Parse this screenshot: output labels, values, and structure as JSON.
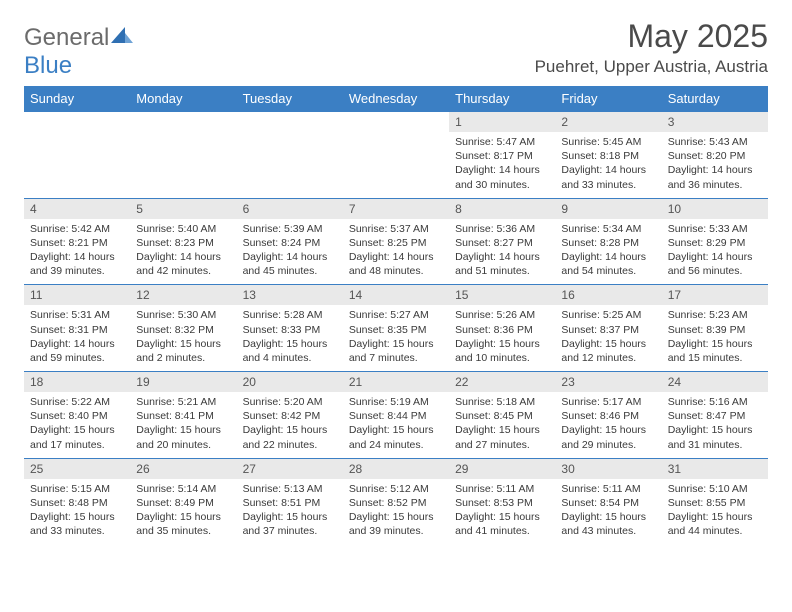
{
  "brand": {
    "text_gray": "General",
    "text_blue": "Blue"
  },
  "title": "May 2025",
  "location": "Puehret, Upper Austria, Austria",
  "colors": {
    "header_bg": "#3b7fc4",
    "header_text": "#ffffff",
    "daynum_bg": "#e9e9e9",
    "text": "#3a3a3a",
    "title_text": "#4a4a4a"
  },
  "weekdays": [
    "Sunday",
    "Monday",
    "Tuesday",
    "Wednesday",
    "Thursday",
    "Friday",
    "Saturday"
  ],
  "weeks": [
    [
      null,
      null,
      null,
      null,
      {
        "n": "1",
        "sr": "Sunrise: 5:47 AM",
        "ss": "Sunset: 8:17 PM",
        "dl1": "Daylight: 14 hours",
        "dl2": "and 30 minutes."
      },
      {
        "n": "2",
        "sr": "Sunrise: 5:45 AM",
        "ss": "Sunset: 8:18 PM",
        "dl1": "Daylight: 14 hours",
        "dl2": "and 33 minutes."
      },
      {
        "n": "3",
        "sr": "Sunrise: 5:43 AM",
        "ss": "Sunset: 8:20 PM",
        "dl1": "Daylight: 14 hours",
        "dl2": "and 36 minutes."
      }
    ],
    [
      {
        "n": "4",
        "sr": "Sunrise: 5:42 AM",
        "ss": "Sunset: 8:21 PM",
        "dl1": "Daylight: 14 hours",
        "dl2": "and 39 minutes."
      },
      {
        "n": "5",
        "sr": "Sunrise: 5:40 AM",
        "ss": "Sunset: 8:23 PM",
        "dl1": "Daylight: 14 hours",
        "dl2": "and 42 minutes."
      },
      {
        "n": "6",
        "sr": "Sunrise: 5:39 AM",
        "ss": "Sunset: 8:24 PM",
        "dl1": "Daylight: 14 hours",
        "dl2": "and 45 minutes."
      },
      {
        "n": "7",
        "sr": "Sunrise: 5:37 AM",
        "ss": "Sunset: 8:25 PM",
        "dl1": "Daylight: 14 hours",
        "dl2": "and 48 minutes."
      },
      {
        "n": "8",
        "sr": "Sunrise: 5:36 AM",
        "ss": "Sunset: 8:27 PM",
        "dl1": "Daylight: 14 hours",
        "dl2": "and 51 minutes."
      },
      {
        "n": "9",
        "sr": "Sunrise: 5:34 AM",
        "ss": "Sunset: 8:28 PM",
        "dl1": "Daylight: 14 hours",
        "dl2": "and 54 minutes."
      },
      {
        "n": "10",
        "sr": "Sunrise: 5:33 AM",
        "ss": "Sunset: 8:29 PM",
        "dl1": "Daylight: 14 hours",
        "dl2": "and 56 minutes."
      }
    ],
    [
      {
        "n": "11",
        "sr": "Sunrise: 5:31 AM",
        "ss": "Sunset: 8:31 PM",
        "dl1": "Daylight: 14 hours",
        "dl2": "and 59 minutes."
      },
      {
        "n": "12",
        "sr": "Sunrise: 5:30 AM",
        "ss": "Sunset: 8:32 PM",
        "dl1": "Daylight: 15 hours",
        "dl2": "and 2 minutes."
      },
      {
        "n": "13",
        "sr": "Sunrise: 5:28 AM",
        "ss": "Sunset: 8:33 PM",
        "dl1": "Daylight: 15 hours",
        "dl2": "and 4 minutes."
      },
      {
        "n": "14",
        "sr": "Sunrise: 5:27 AM",
        "ss": "Sunset: 8:35 PM",
        "dl1": "Daylight: 15 hours",
        "dl2": "and 7 minutes."
      },
      {
        "n": "15",
        "sr": "Sunrise: 5:26 AM",
        "ss": "Sunset: 8:36 PM",
        "dl1": "Daylight: 15 hours",
        "dl2": "and 10 minutes."
      },
      {
        "n": "16",
        "sr": "Sunrise: 5:25 AM",
        "ss": "Sunset: 8:37 PM",
        "dl1": "Daylight: 15 hours",
        "dl2": "and 12 minutes."
      },
      {
        "n": "17",
        "sr": "Sunrise: 5:23 AM",
        "ss": "Sunset: 8:39 PM",
        "dl1": "Daylight: 15 hours",
        "dl2": "and 15 minutes."
      }
    ],
    [
      {
        "n": "18",
        "sr": "Sunrise: 5:22 AM",
        "ss": "Sunset: 8:40 PM",
        "dl1": "Daylight: 15 hours",
        "dl2": "and 17 minutes."
      },
      {
        "n": "19",
        "sr": "Sunrise: 5:21 AM",
        "ss": "Sunset: 8:41 PM",
        "dl1": "Daylight: 15 hours",
        "dl2": "and 20 minutes."
      },
      {
        "n": "20",
        "sr": "Sunrise: 5:20 AM",
        "ss": "Sunset: 8:42 PM",
        "dl1": "Daylight: 15 hours",
        "dl2": "and 22 minutes."
      },
      {
        "n": "21",
        "sr": "Sunrise: 5:19 AM",
        "ss": "Sunset: 8:44 PM",
        "dl1": "Daylight: 15 hours",
        "dl2": "and 24 minutes."
      },
      {
        "n": "22",
        "sr": "Sunrise: 5:18 AM",
        "ss": "Sunset: 8:45 PM",
        "dl1": "Daylight: 15 hours",
        "dl2": "and 27 minutes."
      },
      {
        "n": "23",
        "sr": "Sunrise: 5:17 AM",
        "ss": "Sunset: 8:46 PM",
        "dl1": "Daylight: 15 hours",
        "dl2": "and 29 minutes."
      },
      {
        "n": "24",
        "sr": "Sunrise: 5:16 AM",
        "ss": "Sunset: 8:47 PM",
        "dl1": "Daylight: 15 hours",
        "dl2": "and 31 minutes."
      }
    ],
    [
      {
        "n": "25",
        "sr": "Sunrise: 5:15 AM",
        "ss": "Sunset: 8:48 PM",
        "dl1": "Daylight: 15 hours",
        "dl2": "and 33 minutes."
      },
      {
        "n": "26",
        "sr": "Sunrise: 5:14 AM",
        "ss": "Sunset: 8:49 PM",
        "dl1": "Daylight: 15 hours",
        "dl2": "and 35 minutes."
      },
      {
        "n": "27",
        "sr": "Sunrise: 5:13 AM",
        "ss": "Sunset: 8:51 PM",
        "dl1": "Daylight: 15 hours",
        "dl2": "and 37 minutes."
      },
      {
        "n": "28",
        "sr": "Sunrise: 5:12 AM",
        "ss": "Sunset: 8:52 PM",
        "dl1": "Daylight: 15 hours",
        "dl2": "and 39 minutes."
      },
      {
        "n": "29",
        "sr": "Sunrise: 5:11 AM",
        "ss": "Sunset: 8:53 PM",
        "dl1": "Daylight: 15 hours",
        "dl2": "and 41 minutes."
      },
      {
        "n": "30",
        "sr": "Sunrise: 5:11 AM",
        "ss": "Sunset: 8:54 PM",
        "dl1": "Daylight: 15 hours",
        "dl2": "and 43 minutes."
      },
      {
        "n": "31",
        "sr": "Sunrise: 5:10 AM",
        "ss": "Sunset: 8:55 PM",
        "dl1": "Daylight: 15 hours",
        "dl2": "and 44 minutes."
      }
    ]
  ]
}
